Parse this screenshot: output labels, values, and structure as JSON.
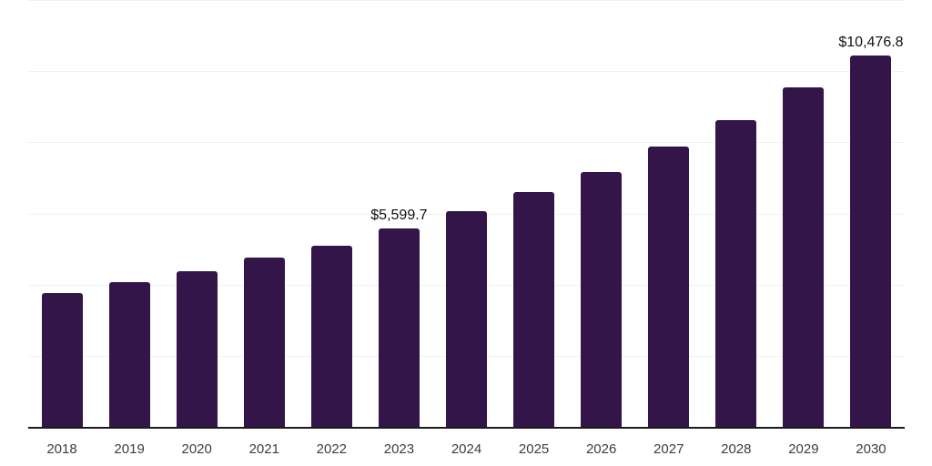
{
  "chart_data": {
    "type": "bar",
    "title": "",
    "xlabel": "",
    "ylabel": "",
    "categories": [
      "2018",
      "2019",
      "2020",
      "2021",
      "2022",
      "2023",
      "2024",
      "2025",
      "2026",
      "2027",
      "2028",
      "2029",
      "2030"
    ],
    "values": [
      3790,
      4095,
      4410,
      4785,
      5115,
      5599.7,
      6090,
      6625,
      7190,
      7905,
      8650,
      9570,
      10476.8
    ],
    "data_labels": [
      "",
      "",
      "",
      "",
      "",
      "$5,599.7",
      "",
      "",
      "",
      "",
      "",
      "",
      "$10,476.8"
    ],
    "ylim": [
      0,
      12000
    ],
    "gridline_step": 2000,
    "grid": "horizontal",
    "legend": "none"
  },
  "colors": {
    "bar": "#331549",
    "gridline": "#f1f1f1",
    "axis_line": "#1b1b1b",
    "data_label_text": "#121212",
    "tick_label_text": "#3d3d3d",
    "background": "#ffffff"
  }
}
